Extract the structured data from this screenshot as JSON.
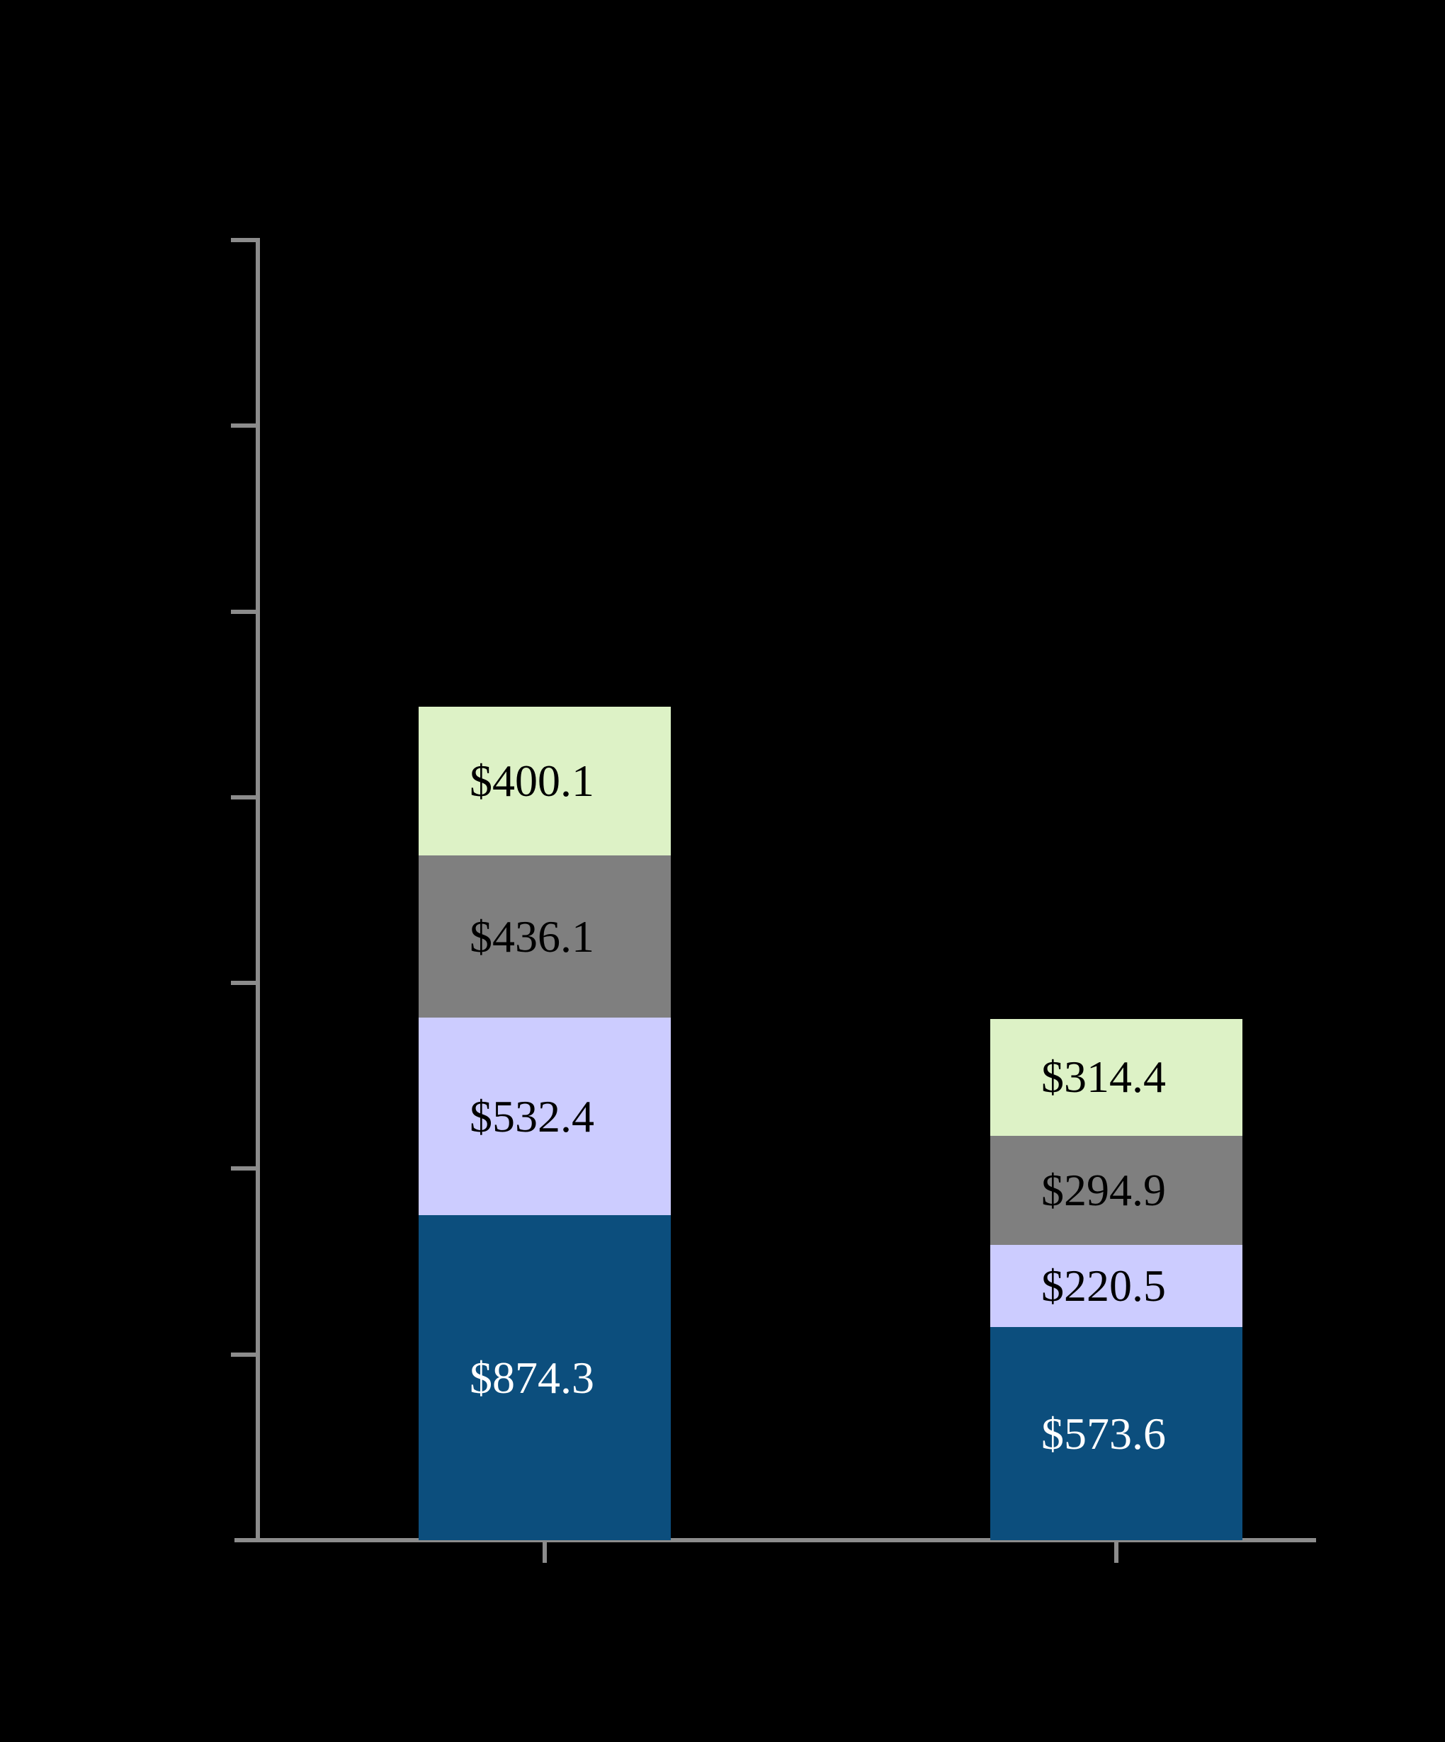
{
  "chart_data": {
    "type": "bar",
    "stacked": true,
    "orientation": "vertical",
    "categories": [
      "",
      ""
    ],
    "series": [
      {
        "color": "#0C4E7D",
        "label_color": "#FFFFFF",
        "values": [
          874.3,
          573.6
        ],
        "labels": [
          "$874.3",
          "$573.6"
        ]
      },
      {
        "color": "#CCCCFF",
        "label_color": "#000000",
        "values": [
          532.4,
          220.5
        ],
        "labels": [
          "$532.4",
          "$220.5"
        ]
      },
      {
        "color": "#7F7F7F",
        "label_color": "#000000",
        "values": [
          436.1,
          294.9
        ],
        "labels": [
          "$436.1",
          "$294.9"
        ]
      },
      {
        "color": "#DDF2C6",
        "label_color": "#000000",
        "values": [
          400.1,
          314.4
        ],
        "labels": [
          "$400.1",
          "$314.4"
        ]
      }
    ],
    "value_prefix": "$",
    "ylim": [
      0,
      3500
    ],
    "y_tick_interval": 500,
    "y_tick_count": 7,
    "grid": false,
    "legend": "none",
    "axis_color": "#8C8C8C",
    "background_color": "#000000"
  }
}
